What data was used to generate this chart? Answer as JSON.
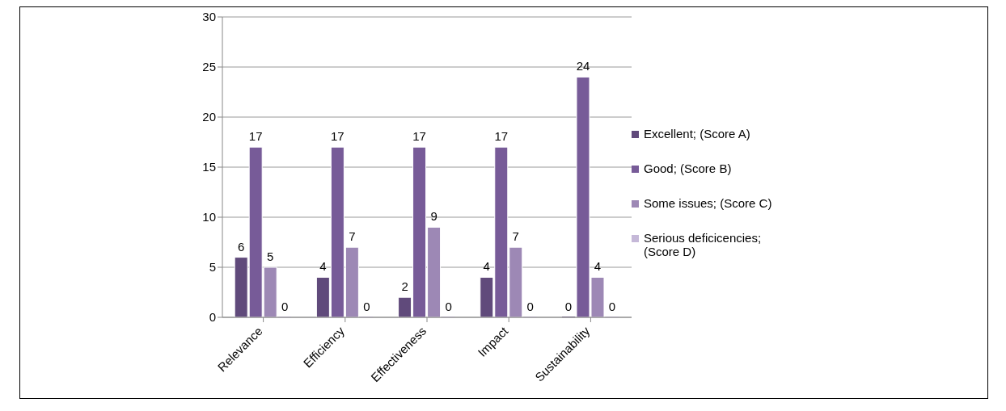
{
  "chart_data": {
    "type": "bar",
    "categories": [
      "Relevance",
      "Efficiency",
      "Effectiveness",
      "Impact",
      "Sustainability"
    ],
    "series": [
      {
        "name": "Excellent; (Score A)",
        "color": "#604a7b",
        "values": [
          6,
          4,
          2,
          4,
          0
        ]
      },
      {
        "name": "Good; (Score B)",
        "color": "#775b98",
        "values": [
          17,
          17,
          17,
          17,
          24
        ]
      },
      {
        "name": "Some issues; (Score C)",
        "color": "#9d88b5",
        "values": [
          5,
          7,
          9,
          7,
          4
        ]
      },
      {
        "name": "Serious deficicencies; (Score D)",
        "color": "#c5b8d8",
        "values": [
          0,
          0,
          0,
          0,
          0
        ]
      }
    ],
    "ylim": [
      0,
      30
    ],
    "yticks": [
      0,
      5,
      10,
      15,
      20,
      25,
      30
    ],
    "grid": "y",
    "legend": "right",
    "data_labels": true
  }
}
